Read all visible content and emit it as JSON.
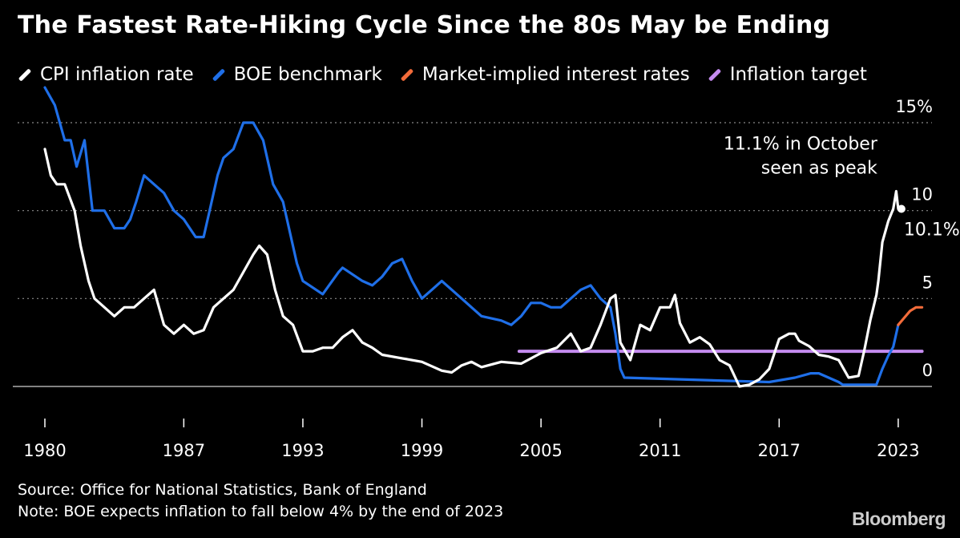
{
  "header": {
    "title": "The Fastest Rate-Hiking Cycle Since the 80s May be Ending"
  },
  "legend": [
    {
      "label": "CPI inflation rate",
      "color": "#ffffff"
    },
    {
      "label": "BOE benchmark",
      "color": "#1f6fe8"
    },
    {
      "label": "Market-implied interest rates",
      "color": "#f26b3a"
    },
    {
      "label": "Inflation target",
      "color": "#c58cf0"
    }
  ],
  "footer": {
    "source": "Source: Office for National Statistics, Bank of England",
    "note": "Note: BOE expects inflation to fall below 4% by the end of 2023",
    "brand": "Bloomberg"
  },
  "chart_data": {
    "type": "line",
    "title": "The Fastest Rate-Hiking Cycle Since the 80s May be Ending",
    "xlabel": "",
    "ylabel": "",
    "xlim": [
      1980,
      2024.7
    ],
    "ylim": [
      0,
      15
    ],
    "x_ticks": [
      "1980",
      "1987",
      "1993",
      "1999",
      "2005",
      "2011",
      "2017",
      "2023"
    ],
    "y_ticks": [
      {
        "value": 0,
        "label": "0"
      },
      {
        "value": 5,
        "label": "5"
      },
      {
        "value": 10,
        "label": "10"
      },
      {
        "value": 15,
        "label": "15%"
      }
    ],
    "grid": "horizontal dotted",
    "legend_position": "top",
    "series": [
      {
        "name": "CPI inflation rate",
        "color": "#ffffff",
        "x": [
          1980.0,
          1980.3,
          1980.6,
          1981.0,
          1981.5,
          1981.8,
          1982.2,
          1982.5,
          1983.0,
          1983.5,
          1984.0,
          1984.5,
          1985.0,
          1985.5,
          1986.0,
          1986.5,
          1987.0,
          1987.5,
          1988.0,
          1988.5,
          1989.0,
          1989.5,
          1990.0,
          1990.5,
          1990.8,
          1991.2,
          1991.6,
          1992.0,
          1992.5,
          1993.0,
          1993.5,
          1994.0,
          1994.5,
          1995.0,
          1995.5,
          1996.0,
          1996.5,
          1997.0,
          1998.0,
          1999.0,
          2000.0,
          2000.5,
          2001.0,
          2001.5,
          2002.0,
          2003.0,
          2004.0,
          2005.0,
          2005.8,
          2006.5,
          2007.0,
          2007.5,
          2008.0,
          2008.5,
          2008.75,
          2009.0,
          2009.5,
          2010.0,
          2010.5,
          2011.0,
          2011.5,
          2011.75,
          2012.0,
          2012.5,
          2013.0,
          2013.5,
          2014.0,
          2014.5,
          2015.0,
          2015.5,
          2016.0,
          2016.5,
          2017.0,
          2017.5,
          2017.8,
          2018.0,
          2018.5,
          2019.0,
          2019.5,
          2020.0,
          2020.5,
          2021.0,
          2021.3,
          2021.6,
          2021.9,
          2022.0,
          2022.2,
          2022.5,
          2022.75,
          2022.9,
          2023.0
        ],
        "y": [
          13.5,
          12.0,
          11.5,
          11.5,
          10.0,
          8.0,
          6.0,
          5.0,
          4.5,
          4.0,
          4.5,
          4.5,
          5.0,
          5.5,
          3.5,
          3.0,
          3.5,
          3.0,
          3.2,
          4.5,
          5.0,
          5.5,
          6.5,
          7.5,
          8.0,
          7.5,
          5.5,
          4.0,
          3.5,
          2.0,
          2.0,
          2.2,
          2.2,
          2.8,
          3.2,
          2.5,
          2.2,
          1.8,
          1.6,
          1.4,
          0.9,
          0.8,
          1.2,
          1.4,
          1.1,
          1.4,
          1.3,
          1.9,
          2.2,
          3.0,
          2.0,
          2.2,
          3.5,
          5.0,
          5.2,
          2.5,
          1.5,
          3.5,
          3.2,
          4.5,
          4.5,
          5.2,
          3.6,
          2.5,
          2.8,
          2.4,
          1.5,
          1.2,
          0.0,
          0.1,
          0.4,
          1.0,
          2.7,
          3.0,
          3.0,
          2.6,
          2.3,
          1.8,
          1.7,
          1.5,
          0.5,
          0.6,
          2.1,
          3.8,
          5.2,
          6.0,
          8.2,
          9.4,
          10.1,
          11.1,
          10.1
        ]
      },
      {
        "name": "BOE benchmark",
        "color": "#1f6fe8",
        "x": [
          1980.0,
          1980.5,
          1981.0,
          1981.3,
          1981.6,
          1982.0,
          1982.4,
          1983.0,
          1983.5,
          1984.0,
          1984.3,
          1984.6,
          1985.0,
          1985.5,
          1986.0,
          1986.5,
          1987.0,
          1987.3,
          1987.6,
          1988.0,
          1988.3,
          1988.7,
          1989.0,
          1989.5,
          1990.0,
          1990.5,
          1991.0,
          1991.5,
          1992.0,
          1992.7,
          1993.0,
          1994.0,
          1994.8,
          1995.0,
          1996.0,
          1996.5,
          1997.0,
          1997.5,
          1998.0,
          1998.5,
          1999.0,
          1999.5,
          2000.0,
          2001.0,
          2001.5,
          2002.0,
          2003.0,
          2003.5,
          2004.0,
          2004.5,
          2005.0,
          2005.5,
          2006.0,
          2006.5,
          2007.0,
          2007.5,
          2008.0,
          2008.5,
          2008.75,
          2009.0,
          2009.2,
          2016.5,
          2017.8,
          2018.6,
          2019.0,
          2020.0,
          2020.2,
          2021.9,
          2022.2,
          2022.5,
          2022.75,
          2023.0
        ],
        "y": [
          17.0,
          16.0,
          14.0,
          14.0,
          12.5,
          14.0,
          10.0,
          10.0,
          9.0,
          9.0,
          9.5,
          10.5,
          12.0,
          11.5,
          11.0,
          10.0,
          9.5,
          9.0,
          8.5,
          8.5,
          10.0,
          12.0,
          13.0,
          13.5,
          15.0,
          15.0,
          14.0,
          11.5,
          10.5,
          7.0,
          6.0,
          5.25,
          6.5,
          6.75,
          6.0,
          5.75,
          6.25,
          7.0,
          7.25,
          6.0,
          5.0,
          5.5,
          6.0,
          5.0,
          4.5,
          4.0,
          3.75,
          3.5,
          4.0,
          4.75,
          4.75,
          4.5,
          4.5,
          5.0,
          5.5,
          5.75,
          5.0,
          4.5,
          3.0,
          1.0,
          0.5,
          0.25,
          0.5,
          0.75,
          0.75,
          0.25,
          0.1,
          0.1,
          1.0,
          1.75,
          2.25,
          3.5
        ]
      },
      {
        "name": "Market-implied interest rates",
        "color": "#f26b3a",
        "x": [
          2023.0,
          2023.3,
          2023.6,
          2023.9,
          2024.2
        ],
        "y": [
          3.5,
          3.9,
          4.3,
          4.5,
          4.5
        ]
      },
      {
        "name": "Inflation target",
        "color": "#c58cf0",
        "x": [
          2003.9,
          2024.2
        ],
        "y": [
          2.0,
          2.0
        ]
      }
    ],
    "annotations": [
      {
        "text_lines": [
          "11.1% in October",
          "seen as peak"
        ],
        "x": 2023.0,
        "y": 11.1
      },
      {
        "text": "10.1%",
        "x": 2023.0,
        "y": 10.1
      }
    ]
  }
}
